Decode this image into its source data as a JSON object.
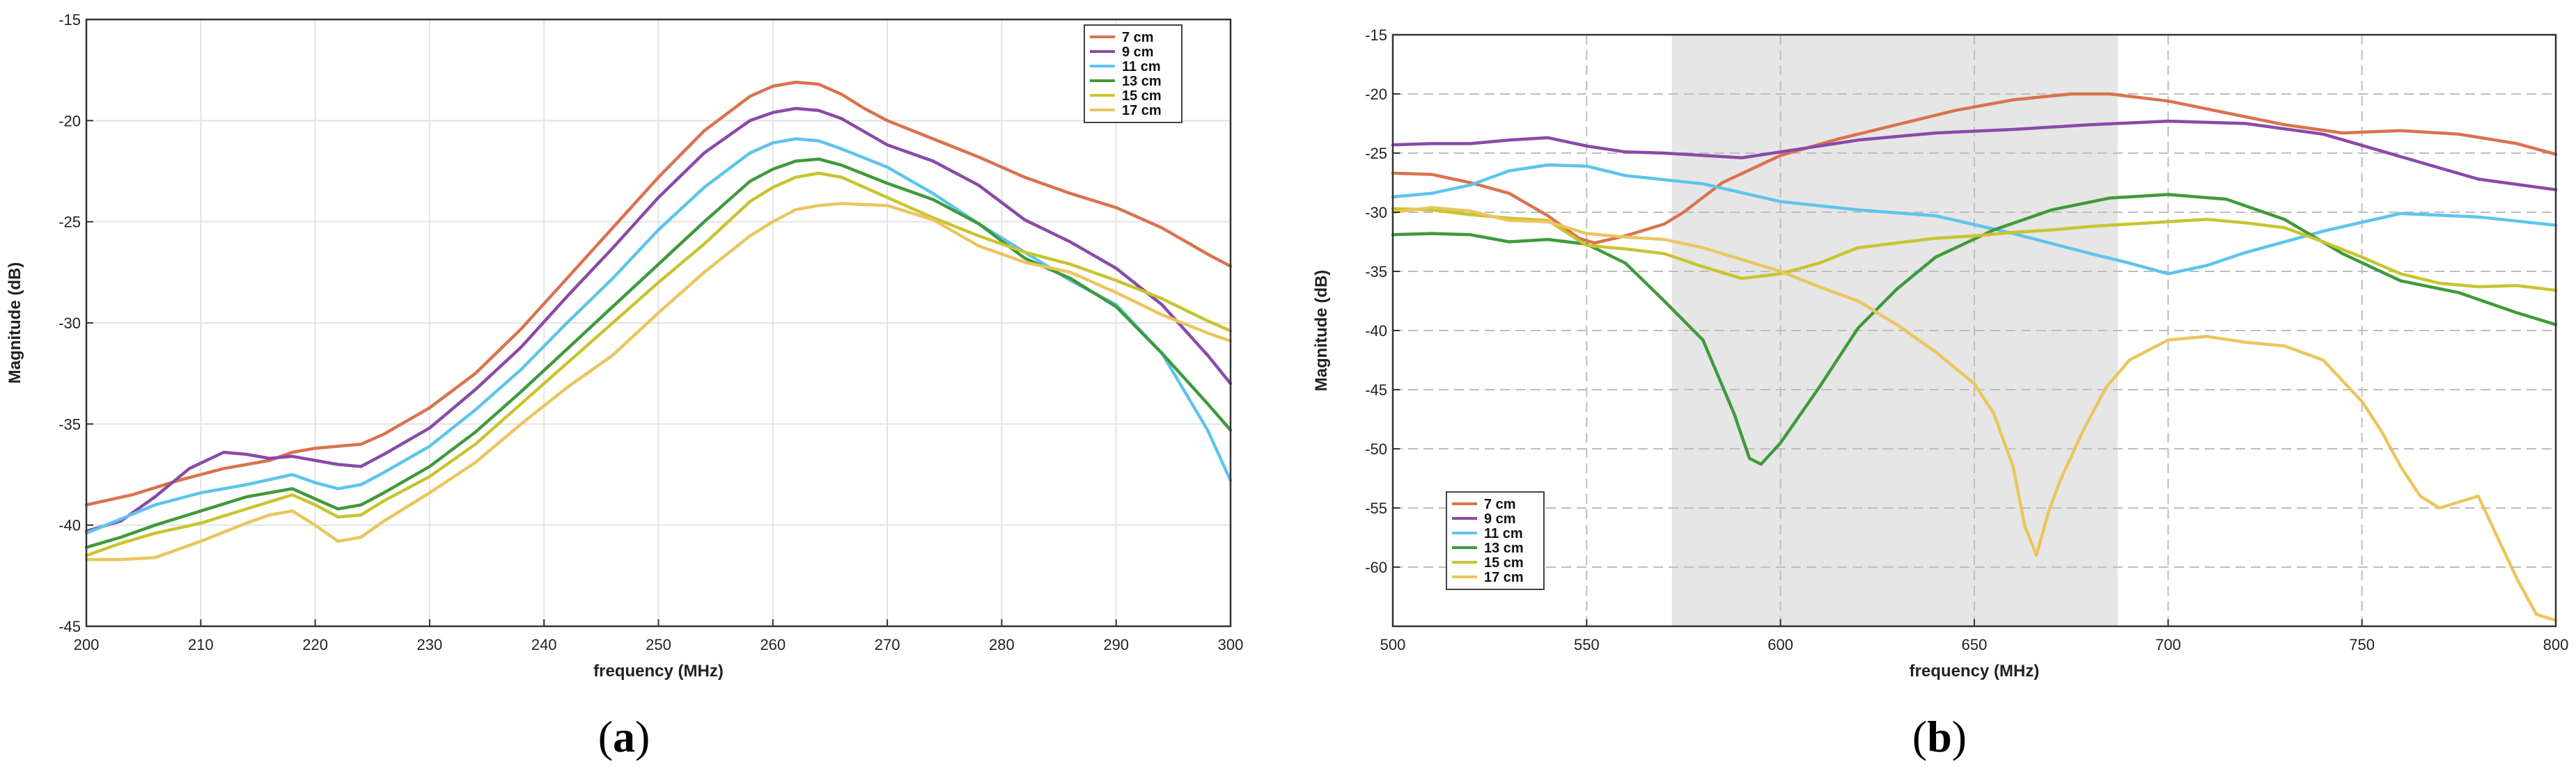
{
  "colors": {
    "7 cm": "#d9734e",
    "9 cm": "#8a4aa8",
    "11 cm": "#5ec4ec",
    "13 cm": "#3f9a3c",
    "15 cm": "#c9c430",
    "17 cm": "#ebc55e",
    "shade": "#e6e6e6"
  },
  "chart_data": [
    {
      "type": "line",
      "panel_label": "a",
      "xlabel": "frequency (MHz)",
      "ylabel": "Magnitude (dB)",
      "xlim": [
        200,
        300
      ],
      "ylim": [
        -45,
        -15
      ],
      "xticks": [
        200,
        210,
        220,
        230,
        240,
        250,
        260,
        270,
        280,
        290,
        300
      ],
      "yticks": [
        -15,
        -20,
        -25,
        -30,
        -35,
        -40,
        -45
      ],
      "grid": true,
      "legend_position": "top-right",
      "series": [
        {
          "name": "7 cm",
          "x": [
            200,
            204,
            208,
            212,
            216,
            218,
            220,
            222,
            224,
            226,
            230,
            234,
            238,
            242,
            246,
            250,
            254,
            258,
            260,
            262,
            264,
            266,
            268,
            270,
            274,
            278,
            282,
            286,
            290,
            294,
            298,
            300
          ],
          "values": [
            -39.0,
            -38.5,
            -37.8,
            -37.2,
            -36.8,
            -36.4,
            -36.2,
            -36.1,
            -36.0,
            -35.5,
            -34.2,
            -32.5,
            -30.3,
            -27.8,
            -25.3,
            -22.8,
            -20.5,
            -18.8,
            -18.3,
            -18.1,
            -18.2,
            -18.7,
            -19.4,
            -20.0,
            -20.9,
            -21.8,
            -22.8,
            -23.6,
            -24.3,
            -25.3,
            -26.6,
            -27.2
          ]
        },
        {
          "name": "9 cm",
          "x": [
            200,
            203,
            206,
            209,
            212,
            214,
            216,
            218,
            220,
            222,
            224,
            226,
            230,
            234,
            238,
            242,
            246,
            250,
            254,
            258,
            260,
            262,
            264,
            266,
            270,
            274,
            278,
            282,
            286,
            290,
            294,
            298,
            300
          ],
          "values": [
            -40.3,
            -39.8,
            -38.6,
            -37.2,
            -36.4,
            -36.5,
            -36.7,
            -36.6,
            -36.8,
            -37.0,
            -37.1,
            -36.5,
            -35.2,
            -33.3,
            -31.2,
            -28.7,
            -26.3,
            -23.8,
            -21.6,
            -20.0,
            -19.6,
            -19.4,
            -19.5,
            -19.9,
            -21.2,
            -22.0,
            -23.2,
            -24.9,
            -26.0,
            -27.3,
            -29.1,
            -31.6,
            -33.0
          ]
        },
        {
          "name": "11 cm",
          "x": [
            200,
            203,
            206,
            210,
            214,
            218,
            220,
            222,
            224,
            226,
            230,
            234,
            238,
            242,
            246,
            250,
            254,
            258,
            260,
            262,
            264,
            266,
            270,
            274,
            278,
            282,
            286,
            290,
            294,
            298,
            300
          ],
          "values": [
            -40.4,
            -39.7,
            -39.0,
            -38.4,
            -38.0,
            -37.5,
            -37.9,
            -38.2,
            -38.0,
            -37.4,
            -36.1,
            -34.3,
            -32.3,
            -30.0,
            -27.8,
            -25.4,
            -23.3,
            -21.6,
            -21.1,
            -20.9,
            -21.0,
            -21.4,
            -22.3,
            -23.6,
            -25.1,
            -26.5,
            -27.9,
            -29.1,
            -31.5,
            -35.3,
            -37.8
          ]
        },
        {
          "name": "13 cm",
          "x": [
            200,
            203,
            206,
            210,
            214,
            218,
            220,
            222,
            224,
            226,
            230,
            234,
            238,
            242,
            246,
            250,
            254,
            258,
            260,
            262,
            264,
            266,
            270,
            274,
            278,
            282,
            286,
            290,
            294,
            298,
            300
          ],
          "values": [
            -41.1,
            -40.6,
            -40.0,
            -39.3,
            -38.6,
            -38.2,
            -38.7,
            -39.2,
            -39.0,
            -38.4,
            -37.1,
            -35.4,
            -33.4,
            -31.3,
            -29.2,
            -27.1,
            -25.0,
            -23.0,
            -22.4,
            -22.0,
            -21.9,
            -22.2,
            -23.1,
            -23.9,
            -25.1,
            -26.8,
            -27.8,
            -29.2,
            -31.5,
            -34.0,
            -35.3
          ]
        },
        {
          "name": "15 cm",
          "x": [
            200,
            203,
            206,
            210,
            214,
            218,
            220,
            222,
            224,
            226,
            230,
            234,
            238,
            242,
            246,
            250,
            254,
            258,
            260,
            262,
            264,
            266,
            270,
            274,
            278,
            282,
            286,
            290,
            294,
            298,
            300
          ],
          "values": [
            -41.5,
            -40.9,
            -40.4,
            -39.9,
            -39.2,
            -38.5,
            -39.0,
            -39.6,
            -39.5,
            -38.8,
            -37.6,
            -36.0,
            -34.0,
            -32.0,
            -30.0,
            -28.0,
            -26.1,
            -24.0,
            -23.3,
            -22.8,
            -22.6,
            -22.8,
            -23.8,
            -24.8,
            -25.7,
            -26.5,
            -27.1,
            -27.9,
            -28.8,
            -29.9,
            -30.4
          ]
        },
        {
          "name": "17 cm",
          "x": [
            200,
            203,
            206,
            210,
            214,
            216,
            218,
            220,
            222,
            224,
            226,
            230,
            234,
            238,
            242,
            246,
            250,
            254,
            258,
            260,
            262,
            264,
            266,
            270,
            274,
            278,
            282,
            286,
            290,
            294,
            298,
            300
          ],
          "values": [
            -41.7,
            -41.7,
            -41.6,
            -40.8,
            -39.9,
            -39.5,
            -39.3,
            -40.0,
            -40.8,
            -40.6,
            -39.8,
            -38.4,
            -36.9,
            -35.0,
            -33.2,
            -31.6,
            -29.5,
            -27.5,
            -25.7,
            -25.0,
            -24.4,
            -24.2,
            -24.1,
            -24.2,
            -24.9,
            -26.2,
            -27.0,
            -27.5,
            -28.5,
            -29.6,
            -30.5,
            -30.9
          ]
        }
      ]
    },
    {
      "type": "line",
      "panel_label": "b",
      "xlabel": "frequency (MHz)",
      "ylabel": "Magnitude (dB)",
      "xlim": [
        500,
        800
      ],
      "ylim": [
        -65,
        -15
      ],
      "xticks": [
        500,
        550,
        600,
        650,
        700,
        750,
        800
      ],
      "yticks": [
        -15,
        -20,
        -25,
        -30,
        -35,
        -40,
        -45,
        -50,
        -55,
        -60
      ],
      "grid": true,
      "shaded_region_x": [
        572,
        687
      ],
      "legend_position": "bottom-left",
      "series": [
        {
          "name": "7 cm",
          "x": [
            500,
            510,
            520,
            530,
            540,
            548,
            552,
            560,
            570,
            575,
            585,
            600,
            615,
            630,
            645,
            660,
            675,
            685,
            700,
            715,
            730,
            745,
            760,
            775,
            790,
            800
          ],
          "values": [
            -26.7,
            -26.8,
            -27.5,
            -28.4,
            -30.3,
            -32.2,
            -32.6,
            -32.0,
            -31.0,
            -30.0,
            -27.5,
            -25.2,
            -23.8,
            -22.6,
            -21.4,
            -20.5,
            -20.0,
            -20.0,
            -20.6,
            -21.6,
            -22.6,
            -23.3,
            -23.1,
            -23.4,
            -24.2,
            -25.1
          ]
        },
        {
          "name": "9 cm",
          "x": [
            500,
            510,
            520,
            530,
            540,
            550,
            560,
            570,
            580,
            590,
            600,
            620,
            640,
            660,
            680,
            700,
            720,
            740,
            760,
            780,
            800
          ],
          "values": [
            -24.3,
            -24.2,
            -24.2,
            -23.9,
            -23.7,
            -24.4,
            -24.9,
            -25.0,
            -25.2,
            -25.4,
            -24.9,
            -23.9,
            -23.3,
            -23.0,
            -22.6,
            -22.3,
            -22.5,
            -23.4,
            -25.3,
            -27.2,
            -28.1
          ]
        },
        {
          "name": "11 cm",
          "x": [
            500,
            510,
            520,
            530,
            540,
            550,
            560,
            580,
            600,
            620,
            640,
            660,
            680,
            690,
            700,
            710,
            720,
            740,
            760,
            780,
            800
          ],
          "values": [
            -28.7,
            -28.4,
            -27.7,
            -26.5,
            -26.0,
            -26.1,
            -26.9,
            -27.6,
            -29.1,
            -29.8,
            -30.3,
            -31.8,
            -33.5,
            -34.3,
            -35.2,
            -34.5,
            -33.4,
            -31.6,
            -30.1,
            -30.4,
            -31.1
          ]
        },
        {
          "name": "13 cm",
          "x": [
            500,
            510,
            520,
            530,
            540,
            550,
            560,
            570,
            580,
            588,
            592,
            595,
            600,
            610,
            620,
            630,
            640,
            655,
            670,
            685,
            700,
            715,
            730,
            745,
            760,
            775,
            790,
            800
          ],
          "values": [
            -31.9,
            -31.8,
            -31.9,
            -32.5,
            -32.3,
            -32.7,
            -34.3,
            -37.5,
            -40.8,
            -47.0,
            -50.8,
            -51.3,
            -49.5,
            -44.8,
            -39.8,
            -36.5,
            -33.8,
            -31.5,
            -29.8,
            -28.8,
            -28.5,
            -28.9,
            -30.6,
            -33.5,
            -35.8,
            -36.8,
            -38.5,
            -39.5
          ]
        },
        {
          "name": "15 cm",
          "x": [
            500,
            510,
            520,
            530,
            540,
            550,
            560,
            570,
            580,
            590,
            600,
            610,
            620,
            630,
            640,
            650,
            660,
            670,
            680,
            690,
            700,
            710,
            720,
            730,
            740,
            750,
            760,
            770,
            780,
            790,
            800
          ],
          "values": [
            -29.7,
            -29.8,
            -30.2,
            -30.5,
            -30.7,
            -32.8,
            -33.1,
            -33.5,
            -34.6,
            -35.6,
            -35.2,
            -34.3,
            -33.0,
            -32.6,
            -32.2,
            -32.0,
            -31.7,
            -31.5,
            -31.2,
            -31.0,
            -30.8,
            -30.6,
            -30.9,
            -31.3,
            -32.5,
            -33.8,
            -35.2,
            -36.0,
            -36.3,
            -36.2,
            -36.6
          ]
        },
        {
          "name": "17 cm",
          "x": [
            500,
            510,
            520,
            530,
            540,
            550,
            560,
            570,
            580,
            590,
            600,
            610,
            620,
            630,
            640,
            650,
            655,
            660,
            663,
            666,
            669,
            672,
            678,
            684,
            690,
            700,
            710,
            720,
            730,
            740,
            750,
            755,
            760,
            765,
            770,
            780,
            785,
            790,
            795,
            800
          ],
          "values": [
            -30.0,
            -29.6,
            -29.9,
            -30.7,
            -30.8,
            -31.8,
            -32.1,
            -32.3,
            -33.0,
            -34.0,
            -35.0,
            -36.3,
            -37.5,
            -39.5,
            -41.8,
            -44.5,
            -47.0,
            -51.5,
            -56.5,
            -59.0,
            -55.5,
            -52.8,
            -48.5,
            -44.8,
            -42.5,
            -40.8,
            -40.5,
            -41.0,
            -41.3,
            -42.5,
            -46.0,
            -48.5,
            -51.5,
            -54.0,
            -55.0,
            -54.0,
            -57.5,
            -61.0,
            -64.0,
            -64.5
          ]
        }
      ]
    }
  ]
}
